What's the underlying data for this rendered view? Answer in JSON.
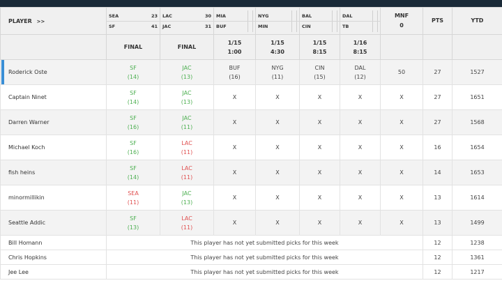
{
  "header": {
    "player_label": "PLAYER",
    "player_arrow": ">>",
    "mnf_label": "MNF",
    "mnf_value": "0",
    "pts_label": "PTS",
    "ytd_label": "YTD"
  },
  "games": [
    {
      "away": "SEA",
      "away_score": "23",
      "home": "SF",
      "home_score": "41",
      "status_top": "FINAL",
      "status_bottom": ""
    },
    {
      "away": "LAC",
      "away_score": "30",
      "home": "JAC",
      "home_score": "31",
      "status_top": "FINAL",
      "status_bottom": ""
    },
    {
      "away": "MIA",
      "away_score": "",
      "home": "BUF",
      "home_score": "",
      "status_top": "1/15",
      "status_bottom": "1:00"
    },
    {
      "away": "NYG",
      "away_score": "",
      "home": "MIN",
      "home_score": "",
      "status_top": "1/15",
      "status_bottom": "4:30"
    },
    {
      "away": "BAL",
      "away_score": "",
      "home": "CIN",
      "home_score": "",
      "status_top": "1/15",
      "status_bottom": "8:15"
    },
    {
      "away": "DAL",
      "away_score": "",
      "home": "TB",
      "home_score": "",
      "status_top": "1/16",
      "status_bottom": "8:15"
    }
  ],
  "players": [
    {
      "name": "Roderick Oste",
      "selected": true,
      "picks": [
        {
          "team": "SF",
          "conf": "(14)",
          "result": "win"
        },
        {
          "team": "JAC",
          "conf": "(13)",
          "result": "win"
        },
        {
          "team": "BUF",
          "conf": "(16)",
          "result": "neutral"
        },
        {
          "team": "NYG",
          "conf": "(11)",
          "result": "neutral"
        },
        {
          "team": "CIN",
          "conf": "(15)",
          "result": "neutral"
        },
        {
          "team": "DAL",
          "conf": "(12)",
          "result": "neutral"
        }
      ],
      "mnf": "50",
      "pts": "27",
      "ytd": "1527"
    },
    {
      "name": "Captain Ninet",
      "selected": false,
      "picks": [
        {
          "team": "SF",
          "conf": "(14)",
          "result": "win"
        },
        {
          "team": "JAC",
          "conf": "(13)",
          "result": "win"
        },
        {
          "team": "X",
          "conf": "",
          "result": "hidden"
        },
        {
          "team": "X",
          "conf": "",
          "result": "hidden"
        },
        {
          "team": "X",
          "conf": "",
          "result": "hidden"
        },
        {
          "team": "X",
          "conf": "",
          "result": "hidden"
        }
      ],
      "mnf": "X",
      "pts": "27",
      "ytd": "1651"
    },
    {
      "name": "Darren Warner",
      "selected": false,
      "picks": [
        {
          "team": "SF",
          "conf": "(16)",
          "result": "win"
        },
        {
          "team": "JAC",
          "conf": "(11)",
          "result": "win"
        },
        {
          "team": "X",
          "conf": "",
          "result": "hidden"
        },
        {
          "team": "X",
          "conf": "",
          "result": "hidden"
        },
        {
          "team": "X",
          "conf": "",
          "result": "hidden"
        },
        {
          "team": "X",
          "conf": "",
          "result": "hidden"
        }
      ],
      "mnf": "X",
      "pts": "27",
      "ytd": "1568"
    },
    {
      "name": "Michael Koch",
      "selected": false,
      "picks": [
        {
          "team": "SF",
          "conf": "(16)",
          "result": "win"
        },
        {
          "team": "LAC",
          "conf": "(11)",
          "result": "loss"
        },
        {
          "team": "X",
          "conf": "",
          "result": "hidden"
        },
        {
          "team": "X",
          "conf": "",
          "result": "hidden"
        },
        {
          "team": "X",
          "conf": "",
          "result": "hidden"
        },
        {
          "team": "X",
          "conf": "",
          "result": "hidden"
        }
      ],
      "mnf": "X",
      "pts": "16",
      "ytd": "1654"
    },
    {
      "name": "fish heins",
      "selected": false,
      "picks": [
        {
          "team": "SF",
          "conf": "(14)",
          "result": "win"
        },
        {
          "team": "LAC",
          "conf": "(11)",
          "result": "loss"
        },
        {
          "team": "X",
          "conf": "",
          "result": "hidden"
        },
        {
          "team": "X",
          "conf": "",
          "result": "hidden"
        },
        {
          "team": "X",
          "conf": "",
          "result": "hidden"
        },
        {
          "team": "X",
          "conf": "",
          "result": "hidden"
        }
      ],
      "mnf": "X",
      "pts": "14",
      "ytd": "1653"
    },
    {
      "name": "minormillikin",
      "selected": false,
      "picks": [
        {
          "team": "SEA",
          "conf": "(11)",
          "result": "loss"
        },
        {
          "team": "JAC",
          "conf": "(13)",
          "result": "win"
        },
        {
          "team": "X",
          "conf": "",
          "result": "hidden"
        },
        {
          "team": "X",
          "conf": "",
          "result": "hidden"
        },
        {
          "team": "X",
          "conf": "",
          "result": "hidden"
        },
        {
          "team": "X",
          "conf": "",
          "result": "hidden"
        }
      ],
      "mnf": "X",
      "pts": "13",
      "ytd": "1614"
    },
    {
      "name": "Seattle Addic",
      "selected": false,
      "picks": [
        {
          "team": "SF",
          "conf": "(13)",
          "result": "win"
        },
        {
          "team": "LAC",
          "conf": "(11)",
          "result": "loss"
        },
        {
          "team": "X",
          "conf": "",
          "result": "hidden"
        },
        {
          "team": "X",
          "conf": "",
          "result": "hidden"
        },
        {
          "team": "X",
          "conf": "",
          "result": "hidden"
        },
        {
          "team": "X",
          "conf": "",
          "result": "hidden"
        }
      ],
      "mnf": "X",
      "pts": "13",
      "ytd": "1499"
    }
  ],
  "pending_players": [
    {
      "name": "Bill Homann",
      "message": "This player has not yet submitted picks for this week",
      "pts": "12",
      "ytd": "1238"
    },
    {
      "name": "Chris Hopkins",
      "message": "This player has not yet submitted picks for this week",
      "pts": "12",
      "ytd": "1361"
    },
    {
      "name": "Jee Lee",
      "message": "This player has not yet submitted picks for this week",
      "pts": "12",
      "ytd": "1217"
    }
  ],
  "colors": {
    "topbar": "#1a2a38",
    "header_bg": "#f0f0f0",
    "alt_row": "#f3f3f3",
    "win": "#4caf50",
    "loss": "#e05050",
    "selected_marker": "#3a8fd6"
  }
}
